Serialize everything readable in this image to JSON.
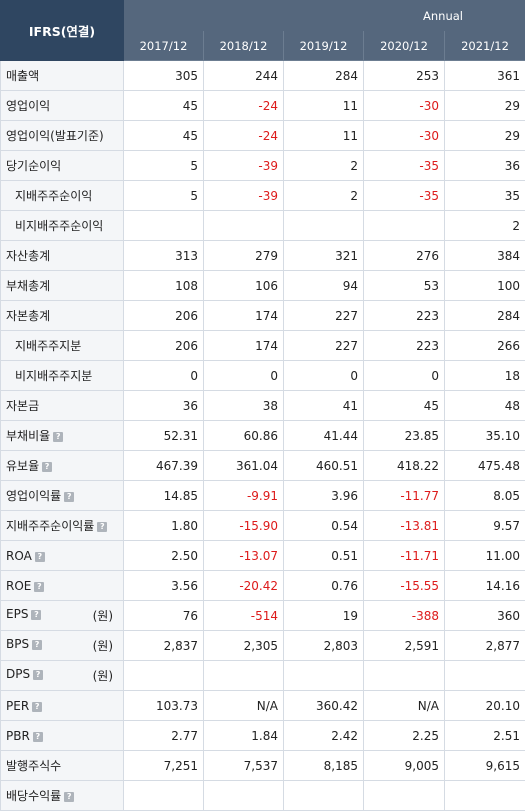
{
  "header": {
    "corner": "IFRS(연결)",
    "period": "Annual",
    "years": [
      "2017/12",
      "2018/12",
      "2019/12",
      "2020/12",
      "2021/12"
    ]
  },
  "help_icon": "?",
  "colors": {
    "negative": "#dd1b1b",
    "header": "#55677d",
    "corner": "#2f4661"
  },
  "rows": [
    {
      "label": "매출액",
      "sub": false,
      "help": false,
      "unit": "",
      "values": [
        "305",
        "244",
        "284",
        "253",
        "361"
      ]
    },
    {
      "label": "영업이익",
      "sub": false,
      "help": false,
      "unit": "",
      "values": [
        "45",
        "-24",
        "11",
        "-30",
        "29"
      ]
    },
    {
      "label": "영업이익(발표기준)",
      "sub": false,
      "help": false,
      "unit": "",
      "values": [
        "45",
        "-24",
        "11",
        "-30",
        "29"
      ]
    },
    {
      "label": "당기순이익",
      "sub": false,
      "help": false,
      "unit": "",
      "values": [
        "5",
        "-39",
        "2",
        "-35",
        "36"
      ]
    },
    {
      "label": "지배주주순이익",
      "sub": true,
      "help": false,
      "unit": "",
      "values": [
        "5",
        "-39",
        "2",
        "-35",
        "35"
      ]
    },
    {
      "label": "비지배주주순이익",
      "sub": true,
      "help": false,
      "unit": "",
      "values": [
        "",
        "",
        "",
        "",
        "2"
      ]
    },
    {
      "label": "자산총계",
      "sub": false,
      "help": false,
      "unit": "",
      "values": [
        "313",
        "279",
        "321",
        "276",
        "384"
      ]
    },
    {
      "label": "부채총계",
      "sub": false,
      "help": false,
      "unit": "",
      "values": [
        "108",
        "106",
        "94",
        "53",
        "100"
      ]
    },
    {
      "label": "자본총계",
      "sub": false,
      "help": false,
      "unit": "",
      "values": [
        "206",
        "174",
        "227",
        "223",
        "284"
      ]
    },
    {
      "label": "지배주주지분",
      "sub": true,
      "help": false,
      "unit": "",
      "values": [
        "206",
        "174",
        "227",
        "223",
        "266"
      ]
    },
    {
      "label": "비지배주주지분",
      "sub": true,
      "help": false,
      "unit": "",
      "values": [
        "0",
        "0",
        "0",
        "0",
        "18"
      ]
    },
    {
      "label": "자본금",
      "sub": false,
      "help": false,
      "unit": "",
      "values": [
        "36",
        "38",
        "41",
        "45",
        "48"
      ]
    },
    {
      "label": "부채비율",
      "sub": false,
      "help": true,
      "unit": "",
      "values": [
        "52.31",
        "60.86",
        "41.44",
        "23.85",
        "35.10"
      ]
    },
    {
      "label": "유보율",
      "sub": false,
      "help": true,
      "unit": "",
      "values": [
        "467.39",
        "361.04",
        "460.51",
        "418.22",
        "475.48"
      ]
    },
    {
      "label": "영업이익률",
      "sub": false,
      "help": true,
      "unit": "",
      "values": [
        "14.85",
        "-9.91",
        "3.96",
        "-11.77",
        "8.05"
      ]
    },
    {
      "label": "지배주주순이익률",
      "sub": false,
      "help": true,
      "unit": "",
      "values": [
        "1.80",
        "-15.90",
        "0.54",
        "-13.81",
        "9.57"
      ]
    },
    {
      "label": "ROA",
      "sub": false,
      "help": true,
      "unit": "",
      "values": [
        "2.50",
        "-13.07",
        "0.51",
        "-11.71",
        "11.00"
      ]
    },
    {
      "label": "ROE",
      "sub": false,
      "help": true,
      "unit": "",
      "values": [
        "3.56",
        "-20.42",
        "0.76",
        "-15.55",
        "14.16"
      ]
    },
    {
      "label": "EPS",
      "sub": false,
      "help": true,
      "unit": "(원)",
      "values": [
        "76",
        "-514",
        "19",
        "-388",
        "360"
      ]
    },
    {
      "label": "BPS",
      "sub": false,
      "help": true,
      "unit": "(원)",
      "values": [
        "2,837",
        "2,305",
        "2,803",
        "2,591",
        "2,877"
      ]
    },
    {
      "label": "DPS",
      "sub": false,
      "help": true,
      "unit": "(원)",
      "values": [
        "",
        "",
        "",
        "",
        ""
      ]
    },
    {
      "label": "PER",
      "sub": false,
      "help": true,
      "unit": "",
      "values": [
        "103.73",
        "N/A",
        "360.42",
        "N/A",
        "20.10"
      ]
    },
    {
      "label": "PBR",
      "sub": false,
      "help": true,
      "unit": "",
      "values": [
        "2.77",
        "1.84",
        "2.42",
        "2.25",
        "2.51"
      ]
    },
    {
      "label": "발행주식수",
      "sub": false,
      "help": false,
      "unit": "",
      "values": [
        "7,251",
        "7,537",
        "8,185",
        "9,005",
        "9,615"
      ]
    },
    {
      "label": "배당수익률",
      "sub": false,
      "help": true,
      "unit": "",
      "values": [
        "",
        "",
        "",
        "",
        ""
      ]
    }
  ]
}
